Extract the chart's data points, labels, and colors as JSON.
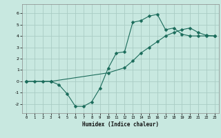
{
  "xlabel": "Humidex (Indice chaleur)",
  "bg_color": "#c8e8e0",
  "line_color": "#1a6b5a",
  "grid_color": "#aaccc4",
  "xlim": [
    -0.5,
    23.5
  ],
  "ylim": [
    -2.8,
    6.8
  ],
  "xticks": [
    0,
    1,
    2,
    3,
    4,
    5,
    6,
    7,
    8,
    9,
    10,
    11,
    12,
    13,
    14,
    15,
    16,
    17,
    18,
    19,
    20,
    21,
    22,
    23
  ],
  "yticks": [
    -2,
    -1,
    0,
    1,
    2,
    3,
    4,
    5,
    6
  ],
  "line1_x": [
    0,
    1,
    2,
    3,
    4,
    5,
    6,
    7,
    8,
    9,
    10,
    11,
    12,
    13,
    14,
    15,
    16,
    17,
    18,
    19,
    20,
    21,
    22,
    23
  ],
  "line1_y": [
    0.0,
    0.0,
    0.0,
    0.0,
    -0.3,
    -1.1,
    -2.2,
    -2.2,
    -1.8,
    -0.6,
    1.15,
    2.5,
    2.6,
    5.2,
    5.35,
    5.75,
    5.9,
    4.55,
    4.7,
    4.15,
    4.0,
    4.0,
    4.0,
    4.0
  ],
  "line1_marker_x": [
    0,
    1,
    2,
    3,
    4,
    5,
    6,
    7,
    8,
    9,
    10,
    11,
    12,
    13,
    14,
    15,
    16,
    17,
    18,
    19,
    20,
    21,
    22,
    23
  ],
  "line1_marker_y": [
    0.0,
    0.0,
    0.0,
    0.0,
    -0.3,
    -1.1,
    -2.2,
    -2.2,
    -1.8,
    -0.6,
    1.15,
    2.5,
    2.6,
    5.2,
    5.35,
    5.75,
    5.9,
    4.55,
    4.7,
    4.15,
    4.0,
    4.0,
    4.0,
    4.0
  ],
  "line2_x": [
    0,
    3,
    10,
    12,
    13,
    14,
    15,
    16,
    17,
    18,
    19,
    20,
    21,
    22,
    23
  ],
  "line2_y": [
    0.0,
    0.0,
    0.75,
    1.2,
    1.8,
    2.5,
    3.0,
    3.5,
    4.0,
    4.3,
    4.55,
    4.7,
    4.3,
    4.05,
    4.0
  ],
  "markersize": 2.5
}
